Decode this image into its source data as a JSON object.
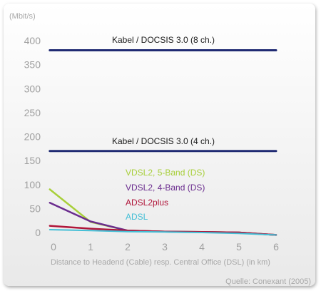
{
  "chart_data": {
    "type": "line",
    "ylabel": "(Mbit/s)",
    "xlabel": "Distance to Headend (Cable) resp. Central Office (DSL) (in km)",
    "source": "Quelle: Conexant (2005)",
    "xlim": [
      0,
      6
    ],
    "ylim": [
      0,
      400
    ],
    "x_ticks": [
      "0",
      "1",
      "2",
      "3",
      "4",
      "5",
      "6"
    ],
    "y_ticks": [
      "0",
      "50",
      "100",
      "150",
      "200",
      "250",
      "300",
      "350",
      "400"
    ],
    "grid": false,
    "series": [
      {
        "name": "Kabel / DOCSIS 3.0 (8 ch.)",
        "color": "#1f2a72",
        "x": [
          -0.1,
          6
        ],
        "y": [
          380,
          380
        ]
      },
      {
        "name": "Kabel / DOCSIS 3.0 (4 ch.)",
        "color": "#1f2a72",
        "x": [
          -0.1,
          6
        ],
        "y": [
          170,
          170
        ]
      },
      {
        "name": "VDSL2, 5-Band (DS)",
        "color": "#a8cf3a",
        "x": [
          -0.1,
          1,
          2,
          3,
          4,
          5,
          6
        ],
        "y": [
          90,
          22,
          4,
          2,
          1,
          0,
          -5
        ]
      },
      {
        "name": "VDSL2, 4-Band (DS)",
        "color": "#6a2c8e",
        "x": [
          -0.1,
          1,
          2,
          3,
          4,
          5,
          6
        ],
        "y": [
          62,
          23,
          4,
          2,
          1,
          0,
          -5
        ]
      },
      {
        "name": "ADSL2plus",
        "color": "#b0163a",
        "x": [
          -0.1,
          1,
          2,
          3,
          4,
          5,
          6
        ],
        "y": [
          14,
          8,
          4,
          2,
          1,
          0,
          -5
        ]
      },
      {
        "name": "ADSL",
        "color": "#44bfd6",
        "x": [
          -0.1,
          1,
          2,
          3,
          4,
          5,
          6
        ],
        "y": [
          6,
          4,
          2,
          1,
          0,
          -2,
          -5
        ]
      }
    ]
  }
}
